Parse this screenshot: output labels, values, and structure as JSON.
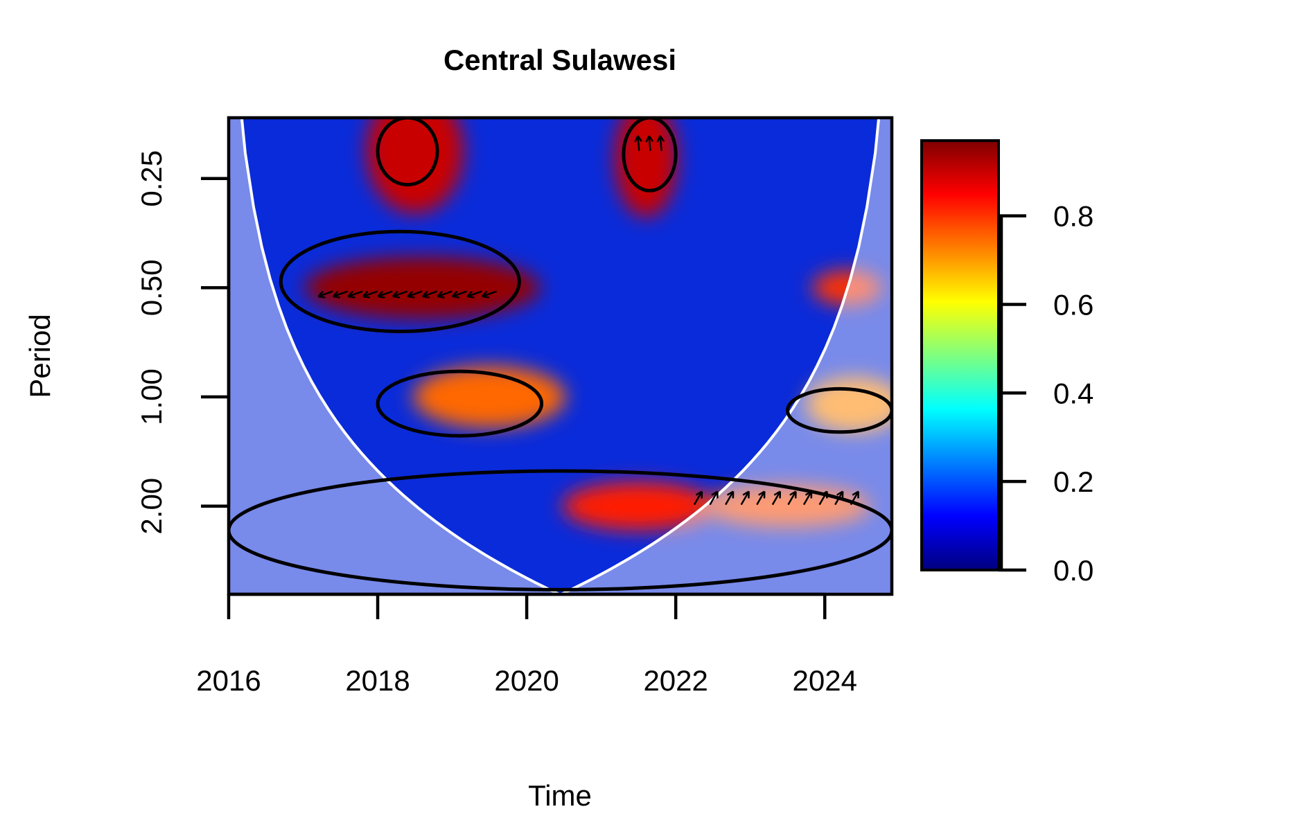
{
  "chart_data": {
    "type": "heatmap",
    "title": "Central Sulawesi",
    "xlabel": "Time",
    "ylabel": "Period",
    "x_ticks": [
      "2016",
      "2018",
      "2020",
      "2022",
      "2024"
    ],
    "y_ticks": [
      "0.25",
      "0.50",
      "1.00",
      "2.00"
    ],
    "xlim": [
      2016,
      2024.9
    ],
    "ylim_period": [
      0.17,
      3.5
    ],
    "y_scale": "log2",
    "colorbar": {
      "ticks": [
        "0.0",
        "0.2",
        "0.4",
        "0.6",
        "0.8"
      ],
      "range": [
        0,
        0.97
      ],
      "palette": "jet"
    },
    "hotspots": [
      {
        "time": 2018.5,
        "period": 0.21,
        "power": 0.9
      },
      {
        "time": 2021.6,
        "period": 0.22,
        "power": 0.9
      },
      {
        "time": 2018.6,
        "period": 0.5,
        "power": 0.95
      },
      {
        "time": 2019.5,
        "period": 1.0,
        "power": 0.75
      },
      {
        "time": 2024.4,
        "period": 1.05,
        "power": 0.72
      },
      {
        "time": 2024.3,
        "period": 0.5,
        "power": 0.8
      },
      {
        "time": 2021.5,
        "period": 2.0,
        "power": 0.82
      },
      {
        "time": 2023.5,
        "period": 2.0,
        "power": 0.78
      }
    ],
    "significance_contours": [
      {
        "region": "top-left",
        "time_range": [
          2018,
          2018.8
        ],
        "period_range": [
          0.17,
          0.26
        ]
      },
      {
        "region": "top-middle",
        "time_range": [
          2021.3,
          2022
        ],
        "period_range": [
          0.17,
          0.27
        ]
      },
      {
        "region": "left-middle",
        "time_range": [
          2016.7,
          2019.9
        ],
        "period_range": [
          0.35,
          0.66
        ]
      },
      {
        "region": "middle",
        "time_range": [
          2018,
          2020.2
        ],
        "period_range": [
          0.85,
          1.28
        ]
      },
      {
        "region": "right",
        "time_range": [
          2023.5,
          2024.9
        ],
        "period_range": [
          0.95,
          1.25
        ]
      },
      {
        "region": "bottom-band",
        "time_range": [
          2016,
          2024.9
        ],
        "period_range": [
          1.6,
          3.4
        ]
      }
    ],
    "cone_of_influence": true,
    "phase_arrows": [
      {
        "region": "0.5 band",
        "direction": "left"
      },
      {
        "region": "2.0 band",
        "direction": "up-right"
      },
      {
        "region": "top",
        "direction": "up"
      }
    ]
  }
}
